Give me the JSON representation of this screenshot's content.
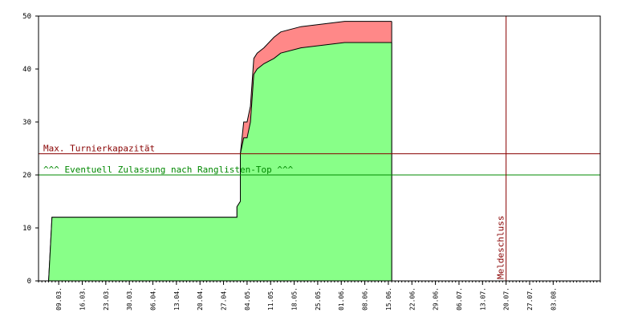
{
  "chart_data": {
    "type": "area",
    "title": "",
    "xlabel": "",
    "ylabel": "",
    "ylim": [
      0,
      50
    ],
    "yticks": [
      0,
      10,
      20,
      30,
      40,
      50
    ],
    "x_tick_labels": [
      "09.03.",
      "16.03.",
      "23.03.",
      "30.03.",
      "06.04.",
      "13.04.",
      "20.04.",
      "27.04.",
      "04.05.",
      "11.05.",
      "18.05.",
      "25.05.",
      "01.06.",
      "08.06.",
      "15.06.",
      "22.06.",
      "29.06.",
      "06.07.",
      "13.07.",
      "20.07.",
      "27.07.",
      "03.08."
    ],
    "grid": false,
    "legend": "none",
    "series": [
      {
        "color": "#ff8888",
        "points": [
          [
            "2024-03-06",
            0
          ],
          [
            "2024-03-07",
            12
          ],
          [
            "2024-05-01",
            12
          ],
          [
            "2024-05-01",
            14
          ],
          [
            "2024-05-02",
            15
          ],
          [
            "2024-05-02",
            24
          ],
          [
            "2024-05-03",
            30
          ],
          [
            "2024-05-04",
            30
          ],
          [
            "2024-05-05",
            33
          ],
          [
            "2024-05-06",
            42
          ],
          [
            "2024-05-07",
            43
          ],
          [
            "2024-05-09",
            44
          ],
          [
            "2024-05-12",
            46
          ],
          [
            "2024-05-14",
            47
          ],
          [
            "2024-05-20",
            48
          ],
          [
            "2024-06-02",
            49
          ],
          [
            "2024-06-16",
            49
          ]
        ]
      },
      {
        "color": "#88ff88",
        "points": [
          [
            "2024-03-06",
            0
          ],
          [
            "2024-03-07",
            12
          ],
          [
            "2024-05-01",
            12
          ],
          [
            "2024-05-01",
            14
          ],
          [
            "2024-05-02",
            15
          ],
          [
            "2024-05-02",
            24
          ],
          [
            "2024-05-03",
            27
          ],
          [
            "2024-05-04",
            27
          ],
          [
            "2024-05-05",
            30
          ],
          [
            "2024-05-06",
            39
          ],
          [
            "2024-05-07",
            40
          ],
          [
            "2024-05-09",
            41
          ],
          [
            "2024-05-12",
            42
          ],
          [
            "2024-05-14",
            43
          ],
          [
            "2024-05-20",
            44
          ],
          [
            "2024-06-02",
            45
          ],
          [
            "2024-06-16",
            45
          ]
        ]
      }
    ],
    "reference_lines": [
      {
        "value": 24,
        "color": "#880000",
        "label": "Max. Turnierkapazität"
      },
      {
        "value": 20,
        "color": "#008800",
        "label": "^^^ Eventuell Zulassung nach Ranglisten-Top ^^^"
      }
    ],
    "vertical_markers": [
      {
        "date": "2024-07-20",
        "color": "#880000",
        "label": "Meldeschluss"
      }
    ]
  }
}
